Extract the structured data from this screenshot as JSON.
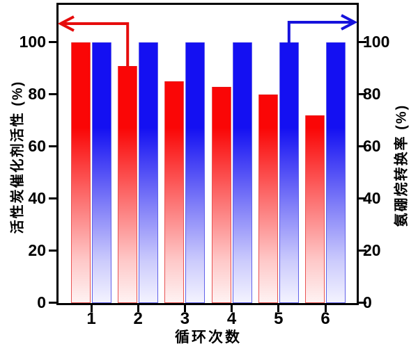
{
  "chart_data": {
    "type": "bar",
    "title": "",
    "categories": [
      "1",
      "2",
      "3",
      "4",
      "5",
      "6"
    ],
    "series": [
      {
        "name": "活性炭催化剂活性",
        "axis": "left",
        "color": "#fa0606",
        "values": [
          100,
          91,
          85,
          83,
          80,
          72
        ]
      },
      {
        "name": "氨硼烷转换率",
        "axis": "right",
        "color": "#1410f2",
        "values": [
          100,
          100,
          100,
          100,
          100,
          100
        ]
      }
    ],
    "xlabel": "循环次数",
    "ylabel_left": "活性炭催化剂活性 (%)",
    "ylabel_right": "氨硼烷转换率 (%)",
    "ylim": [
      0,
      114
    ],
    "yticks": [
      0,
      20,
      40,
      60,
      80,
      100
    ],
    "grid": false,
    "legend": "none",
    "annotations": [
      {
        "type": "arrow",
        "color": "#e60c0c",
        "from_series": "活性炭催化剂活性",
        "from_category": "2",
        "points_to": "left-axis"
      },
      {
        "type": "arrow",
        "color": "#1612dc",
        "from_series": "氨硼烷转换率",
        "from_category": "5",
        "points_to": "right-axis"
      }
    ]
  }
}
